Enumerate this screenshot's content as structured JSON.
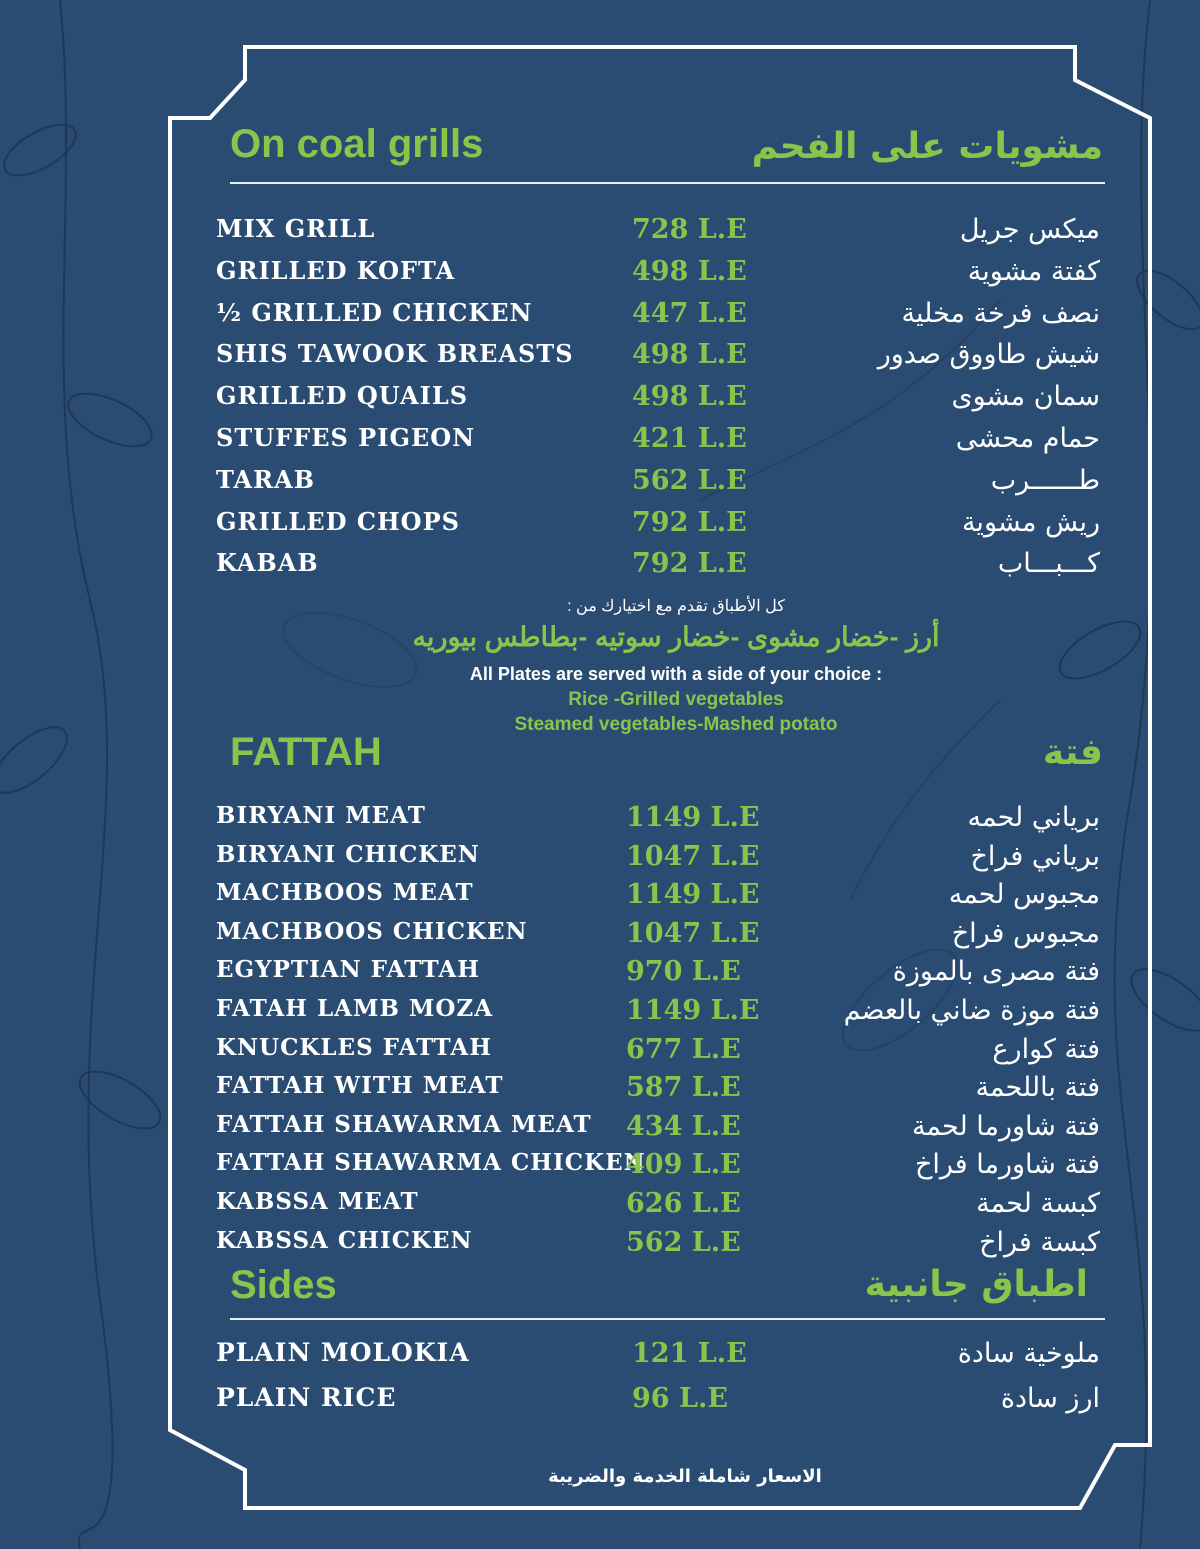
{
  "colors": {
    "background": "#2a4c73",
    "accent": "#8cc34b",
    "text": "#ffffff",
    "frame": "#ffffff"
  },
  "grills": {
    "title_en": "On coal grills",
    "title_ar": "مشويات على الفحم",
    "items": [
      {
        "en": "MIX GRILL",
        "price": "728 L.E",
        "ar": "ميكس جريل"
      },
      {
        "en": "GRILLED KOFTA",
        "price": "498 L.E",
        "ar": "كفتة مشوية"
      },
      {
        "en": "½ GRILLED CHICKEN",
        "price": "447 L.E",
        "ar": "نصف فرخة مخلية"
      },
      {
        "en": "SHIS TAWOOK BREASTS",
        "price": "498 L.E",
        "ar": "شيش طاووق صدور"
      },
      {
        "en": "GRILLED QUAILS",
        "price": "498 L.E",
        "ar": "سمان مشوى"
      },
      {
        "en": "STUFFES PIGEON",
        "price": "421 L.E",
        "ar": "حمام محشى"
      },
      {
        "en": "TARAB",
        "price": "562 L.E",
        "ar": "طــــــرب"
      },
      {
        "en": "GRILLED CHOPS",
        "price": "792 L.E",
        "ar": "ريش مشوية"
      },
      {
        "en": "KABAB",
        "price": "792 L.E",
        "ar": "كـــبـــاب"
      }
    ],
    "note_ar": "كل الأطباق تقدم مع اختيارك من :",
    "sides_ar": "أرز -خضار مشوى -خضار سوتيه -بطاطس بيوريه",
    "note_en": "All Plates are served with a side of your choice :",
    "sides_en_1": "Rice -Grilled vegetables",
    "sides_en_2": "Steamed vegetables-Mashed potato"
  },
  "fattah": {
    "title_en": "FATTAH",
    "title_ar": "فتة",
    "items": [
      {
        "en": "BIRYANI MEAT",
        "price": "1149 L.E",
        "ar": "برياني لحمه"
      },
      {
        "en": "BIRYANI CHICKEN",
        "price": "1047 L.E",
        "ar": "برياني فراخ"
      },
      {
        "en": "MACHBOOS MEAT",
        "price": "1149 L.E",
        "ar": "مجبوس لحمه"
      },
      {
        "en": "MACHBOOS CHICKEN",
        "price": "1047 L.E",
        "ar": "مجبوس فراخ"
      },
      {
        "en": "EGYPTIAN FATTAH",
        "price": "970 L.E",
        "ar": "فتة مصرى بالموزة"
      },
      {
        "en": "FATAH LAMB MOZA",
        "price": "1149 L.E",
        "ar": "فتة موزة ضاني بالعضم"
      },
      {
        "en": "KNUCKLES FATTAH",
        "price": "677 L.E",
        "ar": "فتة كوارع"
      },
      {
        "en": "FATTAH WITH MEAT",
        "price": "587 L.E",
        "ar": "فتة باللحمة"
      },
      {
        "en": "FATTAH SHAWARMA MEAT",
        "price": "434 L.E",
        "ar": "فتة شاورما لحمة"
      },
      {
        "en": "FATTAH SHAWARMA CHICKEN",
        "price": "409 L.E",
        "ar": "فتة شاورما فراخ"
      },
      {
        "en": "KABSSA MEAT",
        "price": "626 L.E",
        "ar": "كبسة لحمة"
      },
      {
        "en": "KABSSA CHICKEN",
        "price": "562 L.E",
        "ar": "كبسة فراخ"
      }
    ]
  },
  "sides": {
    "title_en": "Sides",
    "title_ar": "اطباق جانبية",
    "items": [
      {
        "en": "PLAIN MOLOKIA",
        "price": "121 L.E",
        "ar": "ملوخية سادة"
      },
      {
        "en": "PLAIN RICE",
        "price": "96 L.E",
        "ar": "ارز سادة"
      }
    ]
  },
  "footer": "الاسعار شاملة الخدمة والضريبة"
}
